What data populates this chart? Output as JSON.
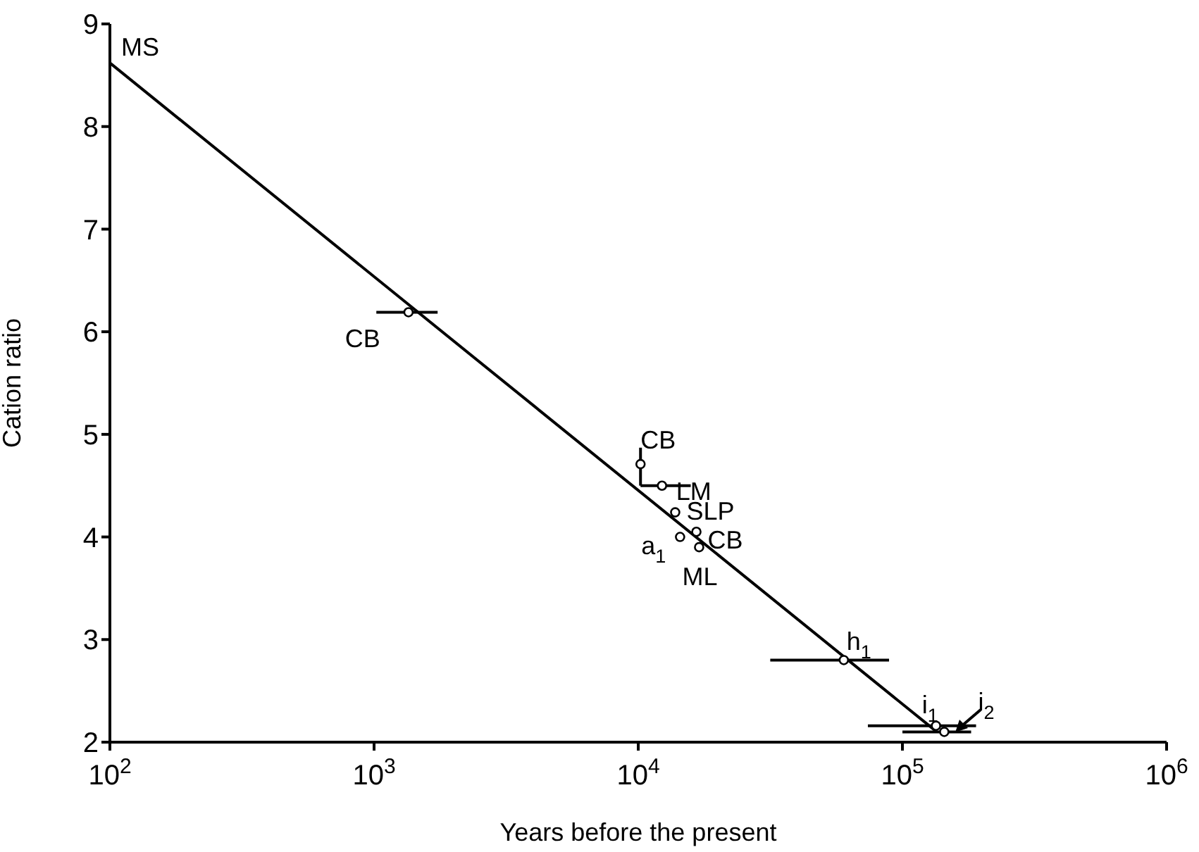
{
  "chart_data": {
    "type": "scatter",
    "xlabel": "Years before the present",
    "ylabel": "Cation ratio",
    "log": "x",
    "xlim": [
      100,
      1000000
    ],
    "xticks": [
      {
        "value": 100,
        "label": "10$^{2}$"
      },
      {
        "value": 1000,
        "label": "10$^{3}$"
      },
      {
        "value": 10000,
        "label": "10$^{4}$"
      },
      {
        "value": 100000,
        "label": "10$^{5}$"
      },
      {
        "value": 1000000,
        "label": "10$^{6}$"
      }
    ],
    "ylim": [
      2,
      9
    ],
    "yticks": [
      2,
      3,
      4,
      5,
      6,
      7,
      8,
      9
    ],
    "series": [
      {
        "type": "line",
        "color": "#000000",
        "marker": "none",
        "line_style": "solid",
        "x": [
          100,
          135000
        ],
        "values": [
          8.62,
          2.1
        ]
      },
      {
        "color": "#000000",
        "marker": "circle",
        "x": [
          1350,
          10200,
          12300,
          13800,
          14400,
          16600,
          17000,
          60000,
          134000,
          144000
        ],
        "values": [
          6.19,
          4.71,
          4.5,
          4.24,
          4.0,
          4.05,
          3.9,
          2.8,
          2.16,
          2.1
        ],
        "xerrors": [
          [
            1020,
            1740
          ],
          null,
          [
            10200,
            15800
          ],
          null,
          null,
          null,
          null,
          [
            31600,
            89000
          ],
          [
            74000,
            190000
          ],
          [
            100000,
            182000
          ]
        ],
        "errors": [
          null,
          [
            4.5,
            4.87
          ],
          null,
          null,
          null,
          null,
          null,
          null,
          null,
          null
        ]
      }
    ],
    "annotations": [
      {
        "text": "MS",
        "x": 100,
        "y": 8.62
      },
      {
        "text": "CB",
        "x": 1350,
        "y": 6.19
      },
      {
        "text": "CB",
        "x": 10200,
        "y": 4.71
      },
      {
        "text": "LM",
        "x": 12300,
        "y": 4.5
      },
      {
        "text": "SLP",
        "x": 13800,
        "y": 4.24
      },
      {
        "text": "a$_{1}$",
        "x": 14400,
        "y": 4.0
      },
      {
        "text": "CB",
        "x": 16600,
        "y": 4.05
      },
      {
        "text": "ML",
        "x": 17000,
        "y": 3.9
      },
      {
        "text": "h$_{1}$",
        "x": 60000,
        "y": 2.8
      },
      {
        "text": "i$_{1}$",
        "x": 134000,
        "y": 2.16
      },
      {
        "text": "i$_{2}$",
        "x": 144000,
        "y": 2.1
      }
    ]
  }
}
